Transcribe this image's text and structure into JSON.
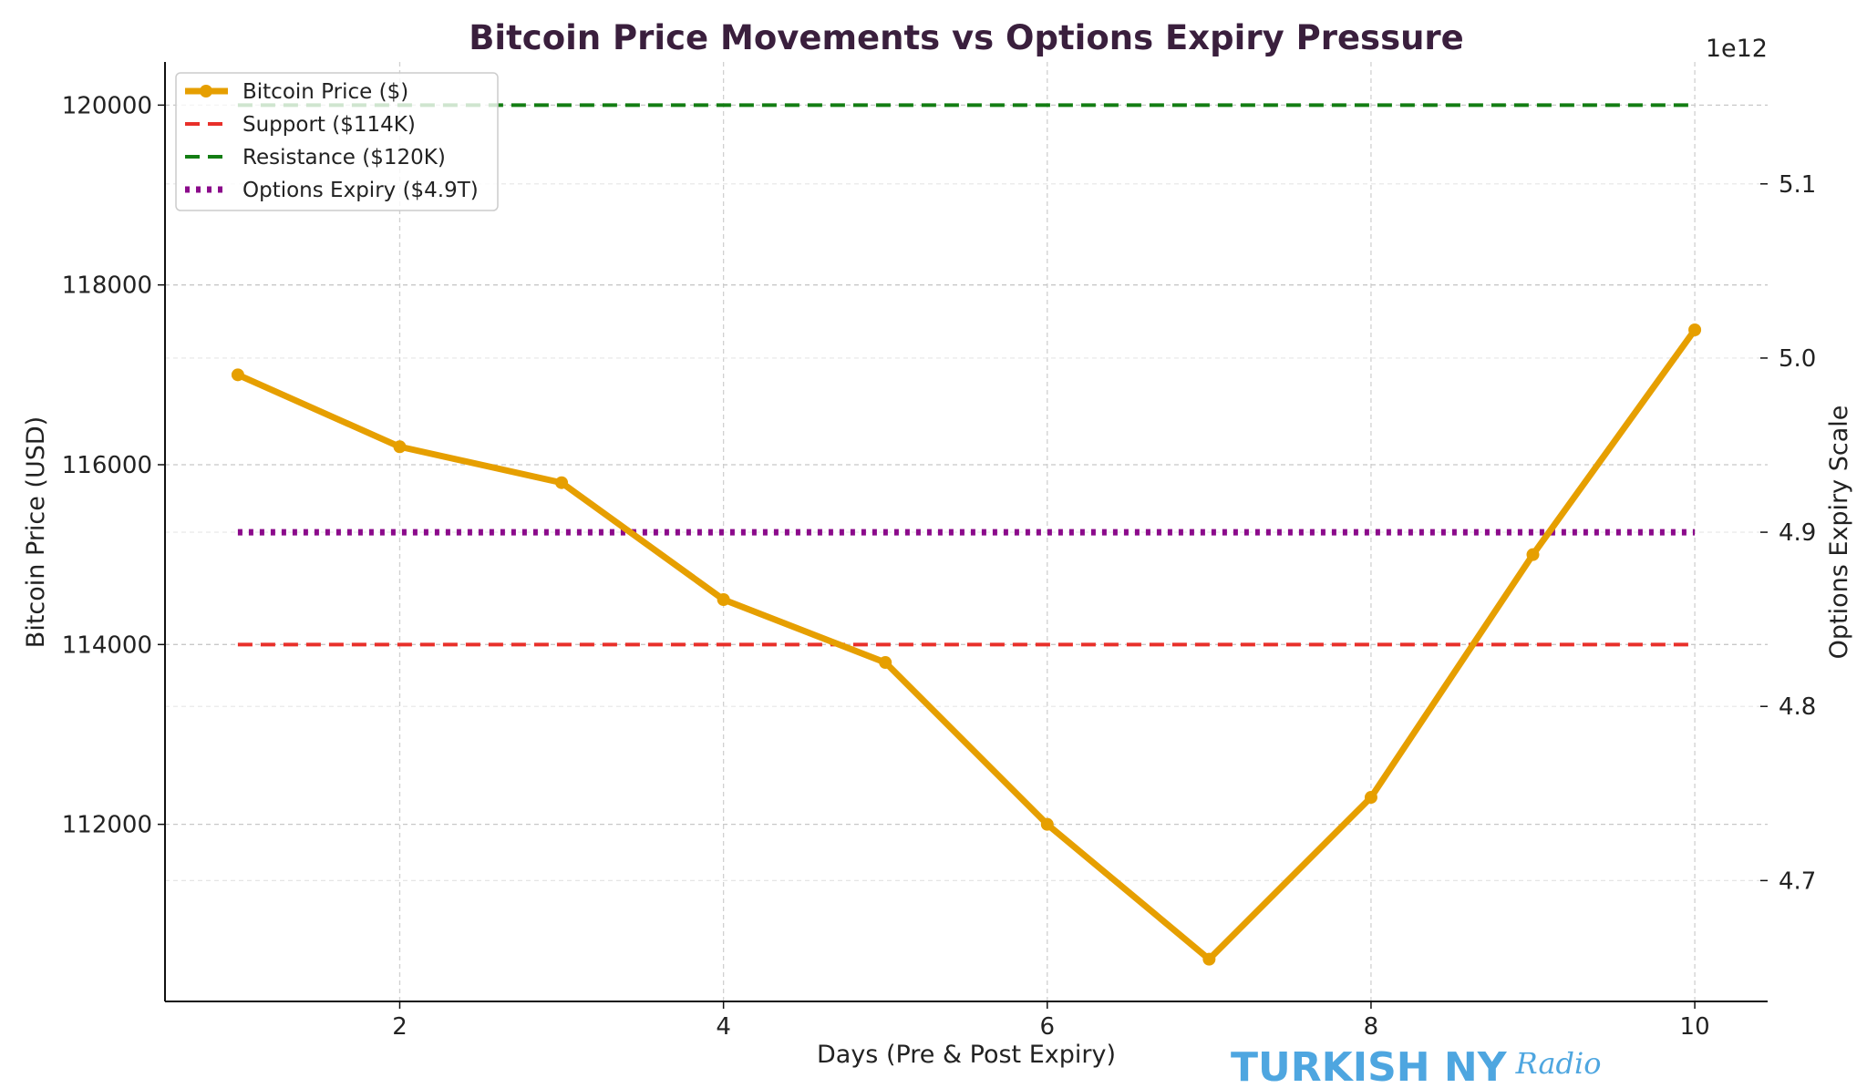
{
  "chart_data": {
    "type": "line",
    "title": "Bitcoin Price Movements vs Options Expiry Pressure",
    "xlabel": "Days (Pre & Post Expiry)",
    "ylabel": "Bitcoin Price (USD)",
    "y2label": "Options Expiry Scale",
    "y2_offset_label": "1e12",
    "x": [
      1,
      2,
      3,
      4,
      5,
      6,
      7,
      8,
      9,
      10
    ],
    "xlim": [
      0.55,
      10.45
    ],
    "ylim": [
      110030,
      120480
    ],
    "y2lim": [
      4.6306,
      5.17
    ],
    "xticks": [
      2,
      4,
      6,
      8,
      10
    ],
    "yticks": [
      112000,
      114000,
      116000,
      118000,
      120000
    ],
    "y2ticks": [
      4.7,
      4.8,
      4.9,
      5.0,
      5.1
    ],
    "y2tick_labels": [
      "4.7",
      "4.8",
      "4.9",
      "5.0",
      "5.1"
    ],
    "grid": true,
    "legend_placement": "top-left",
    "series": [
      {
        "name": "Bitcoin Price ($)",
        "axis": "left",
        "style": "solid-marker",
        "color": "#e69f00",
        "values": [
          117000,
          116200,
          115800,
          114500,
          113800,
          112000,
          110500,
          112300,
          115000,
          117500
        ]
      },
      {
        "name": "Support ($114K)",
        "axis": "left",
        "style": "dashed",
        "color": "#e8302a",
        "constant": 114000
      },
      {
        "name": "Resistance ($120K)",
        "axis": "left",
        "style": "dashed",
        "color": "#137d13",
        "constant": 120000
      },
      {
        "name": "Options Expiry ($4.9T)",
        "axis": "right",
        "style": "dotted",
        "color": "#8b0a8b",
        "constant": 4.9
      }
    ],
    "title_color": "#3a1f3d"
  },
  "watermark": {
    "text": "TURKISH NY",
    "script": "Radio",
    "color": "#4ea6e0"
  }
}
